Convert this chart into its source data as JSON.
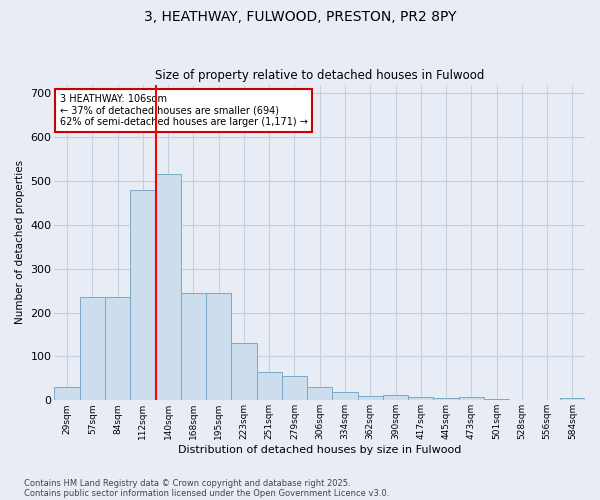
{
  "title1": "3, HEATHWAY, FULWOOD, PRESTON, PR2 8PY",
  "title2": "Size of property relative to detached houses in Fulwood",
  "xlabel": "Distribution of detached houses by size in Fulwood",
  "ylabel": "Number of detached properties",
  "categories": [
    "29sqm",
    "57sqm",
    "84sqm",
    "112sqm",
    "140sqm",
    "168sqm",
    "195sqm",
    "223sqm",
    "251sqm",
    "279sqm",
    "306sqm",
    "334sqm",
    "362sqm",
    "390sqm",
    "417sqm",
    "445sqm",
    "473sqm",
    "501sqm",
    "528sqm",
    "556sqm",
    "584sqm"
  ],
  "values": [
    30,
    235,
    235,
    480,
    515,
    245,
    245,
    130,
    65,
    55,
    30,
    18,
    10,
    12,
    8,
    5,
    8,
    2,
    0,
    0,
    5
  ],
  "bar_color": "#ccdded",
  "bar_edge_color": "#7aaac8",
  "grid_color": "#c5cfe0",
  "background_color": "#e8edf5",
  "red_line_x": 3.5,
  "annotation_text": "3 HEATHWAY: 106sqm\n← 37% of detached houses are smaller (694)\n62% of semi-detached houses are larger (1,171) →",
  "annotation_box_color": "#ffffff",
  "annotation_box_edge": "#cc0000",
  "ylim": [
    0,
    720
  ],
  "yticks": [
    0,
    100,
    200,
    300,
    400,
    500,
    600,
    700
  ],
  "footer1": "Contains HM Land Registry data © Crown copyright and database right 2025.",
  "footer2": "Contains public sector information licensed under the Open Government Licence v3.0."
}
